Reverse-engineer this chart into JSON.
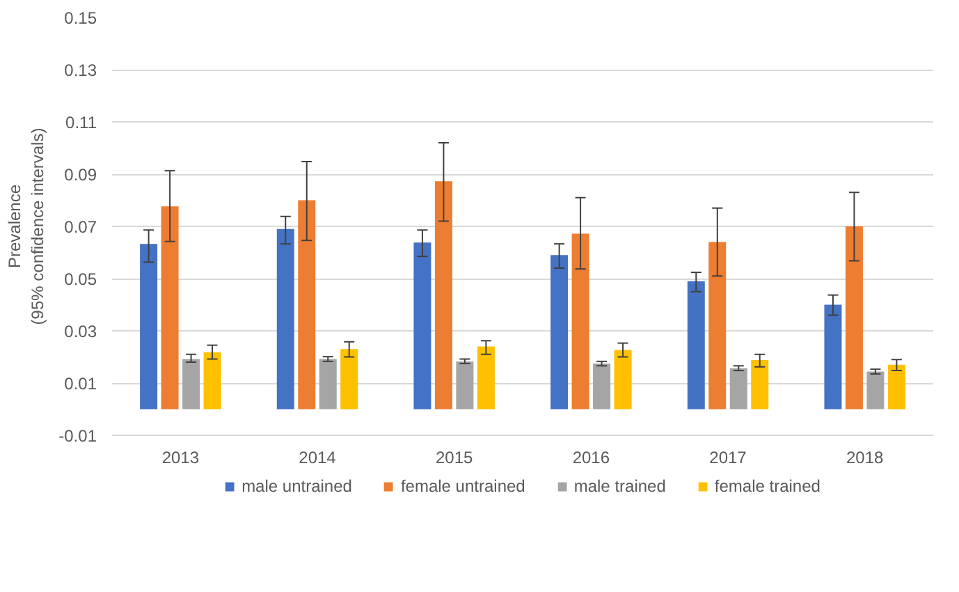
{
  "chart_data": {
    "type": "bar",
    "ylabel": "Prevalence\n(95% confidence intervals)",
    "categories": [
      "2013",
      "2014",
      "2015",
      "2016",
      "2017",
      "2018"
    ],
    "series": [
      {
        "name": "male untrained",
        "color": "#4472c4",
        "values": [
          0.0633,
          0.069,
          0.0638,
          0.059,
          0.049,
          0.04
        ],
        "errors": [
          [
            0.0563,
            0.0686
          ],
          [
            0.0633,
            0.0738
          ],
          [
            0.0585,
            0.0686
          ],
          [
            0.054,
            0.0633
          ],
          [
            0.045,
            0.0524
          ],
          [
            0.036,
            0.0437
          ]
        ]
      },
      {
        "name": "female untrained",
        "color": "#ed7d31",
        "values": [
          0.0777,
          0.08,
          0.0873,
          0.0672,
          0.064,
          0.07
        ],
        "errors": [
          [
            0.0642,
            0.0913
          ],
          [
            0.0646,
            0.0948
          ],
          [
            0.072,
            0.102
          ],
          [
            0.0537,
            0.081
          ],
          [
            0.051,
            0.077
          ],
          [
            0.0568,
            0.083
          ]
        ]
      },
      {
        "name": "male trained",
        "color": "#a5a5a5",
        "values": [
          0.0192,
          0.0192,
          0.0183,
          0.0175,
          0.0157,
          0.0144
        ],
        "errors": [
          [
            0.018,
            0.021
          ],
          [
            0.0183,
            0.0201
          ],
          [
            0.0175,
            0.0192
          ],
          [
            0.0166,
            0.0183
          ],
          [
            0.0148,
            0.0166
          ],
          [
            0.0135,
            0.0153
          ]
        ]
      },
      {
        "name": "female trained",
        "color": "#ffc000",
        "values": [
          0.0218,
          0.023,
          0.024,
          0.0227,
          0.0188,
          0.017
        ],
        "errors": [
          [
            0.0192,
            0.0245
          ],
          [
            0.02,
            0.0258
          ],
          [
            0.021,
            0.0262
          ],
          [
            0.02,
            0.0253
          ],
          [
            0.0162,
            0.021
          ],
          [
            0.0148,
            0.019
          ]
        ]
      }
    ],
    "ylim": [
      -0.01,
      0.15
    ],
    "yticks": [
      -0.01,
      0.01,
      0.03,
      0.05,
      0.07,
      0.09,
      0.11,
      0.13,
      0.15
    ],
    "grid": "y",
    "legend": "bottom"
  }
}
